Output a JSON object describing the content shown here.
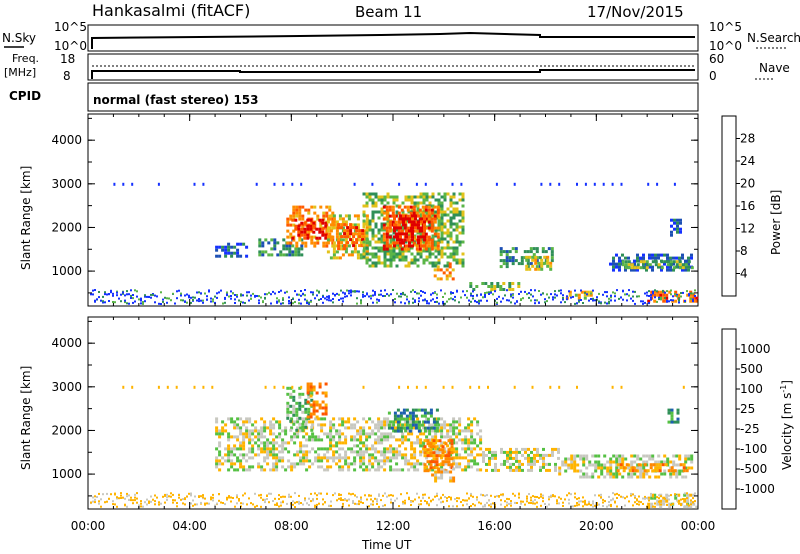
{
  "header": {
    "station": "Hankasalmi (fitACF)",
    "beam": "Beam 11",
    "date": "17/Nov/2015"
  },
  "panels": {
    "nsky": {
      "left_label": "N.Sky",
      "left_top": "10^5",
      "left_bottom": "10^0",
      "right_label": "N.Search",
      "right_top": "10^5",
      "right_bottom": "10^0"
    },
    "freq": {
      "left_label_1": "Freq.",
      "left_label_2": "[MHz]",
      "left_top": "18",
      "left_bottom": "8",
      "right_label": "Nave",
      "right_top": "60",
      "right_bottom": "0"
    },
    "cpid": {
      "label": "CPID",
      "text": "normal (fast stereo) 153"
    }
  },
  "chart_data": [
    {
      "type": "heatmap",
      "title": "",
      "xlabel": "",
      "ylabel": "Slant Range [km]",
      "x_ticks": [
        "00:00",
        "04:00",
        "08:00",
        "12:00",
        "16:00",
        "20:00",
        "00:00"
      ],
      "y_ticks": [
        1000,
        2000,
        3000,
        4000
      ],
      "xlim_hours": [
        0,
        24
      ],
      "ylim_km": [
        200,
        4600
      ],
      "colorbar": {
        "label": "Power [dB]",
        "ticks": [
          4,
          8,
          12,
          16,
          20,
          24,
          28
        ],
        "colors": [
          "#1531ff",
          "#1c4fb4",
          "#2f8f57",
          "#5ab547",
          "#e3c21a",
          "#ff8c00",
          "#ff5a00",
          "#e00000"
        ]
      },
      "patches": [
        {
          "x0": 6.7,
          "x1": 8.4,
          "y0": 1350,
          "y1": 1750,
          "level": 2
        },
        {
          "x0": 7.8,
          "x1": 9.6,
          "y0": 1600,
          "y1": 2500,
          "level": 5
        },
        {
          "x0": 8.0,
          "x1": 9.4,
          "y0": 1750,
          "y1": 2200,
          "level": 7
        },
        {
          "x0": 9.4,
          "x1": 11.0,
          "y0": 1300,
          "y1": 2300,
          "level": 4
        },
        {
          "x0": 9.8,
          "x1": 10.8,
          "y0": 1500,
          "y1": 2100,
          "level": 6
        },
        {
          "x0": 10.8,
          "x1": 14.8,
          "y0": 1100,
          "y1": 2800,
          "level": 3
        },
        {
          "x0": 11.6,
          "x1": 13.8,
          "y0": 1500,
          "y1": 2500,
          "level": 6
        },
        {
          "x0": 12.0,
          "x1": 13.2,
          "y0": 1600,
          "y1": 2300,
          "level": 7
        },
        {
          "x0": 13.6,
          "x1": 14.4,
          "y0": 850,
          "y1": 1200,
          "level": 5
        },
        {
          "x0": 16.2,
          "x1": 18.3,
          "y0": 1100,
          "y1": 1550,
          "level": 2
        },
        {
          "x0": 17.2,
          "x1": 18.2,
          "y0": 1050,
          "y1": 1350,
          "level": 4
        },
        {
          "x0": 20.5,
          "x1": 23.8,
          "y0": 1050,
          "y1": 1400,
          "level": 1
        },
        {
          "x0": 21.0,
          "x1": 23.8,
          "y0": 1100,
          "y1": 1250,
          "level": 3
        },
        {
          "x0": 22.0,
          "x1": 23.9,
          "y0": 300,
          "y1": 550,
          "level": 6
        },
        {
          "x0": 15.0,
          "x1": 17.0,
          "y0": 600,
          "y1": 750,
          "level": 3
        },
        {
          "x0": 18.8,
          "x1": 19.8,
          "y0": 400,
          "y1": 550,
          "level": 4
        },
        {
          "x0": 22.9,
          "x1": 23.3,
          "y0": 1800,
          "y1": 2200,
          "level": 1
        },
        {
          "x0": 5.0,
          "x1": 6.2,
          "y0": 1350,
          "y1": 1650,
          "level": 1
        }
      ]
    },
    {
      "type": "heatmap",
      "title": "",
      "xlabel": "Time UT",
      "ylabel": "Slant Range [km]",
      "x_ticks": [
        "00:00",
        "04:00",
        "08:00",
        "12:00",
        "16:00",
        "20:00",
        "00:00"
      ],
      "y_ticks": [
        1000,
        2000,
        3000,
        4000
      ],
      "xlim_hours": [
        0,
        24
      ],
      "ylim_km": [
        200,
        4600
      ],
      "colorbar": {
        "label": "Velocity [m s-1]",
        "ticks": [
          1000,
          500,
          100,
          25,
          -25,
          -100,
          -500,
          -1000
        ],
        "colors": [
          "#1c3fd0",
          "#1d5fb0",
          "#2f8f57",
          "#55c043",
          "#c8c8c0",
          "#ffb400",
          "#ff8800",
          "#ff5500",
          "#ff0000"
        ]
      },
      "patches": [
        {
          "x0": 5.0,
          "x1": 15.5,
          "y0": 1100,
          "y1": 2300,
          "level": 4
        },
        {
          "x0": 7.8,
          "x1": 8.8,
          "y0": 2000,
          "y1": 3000,
          "level": 3
        },
        {
          "x0": 8.6,
          "x1": 9.4,
          "y0": 2300,
          "y1": 3100,
          "level": 6
        },
        {
          "x0": 11.8,
          "x1": 13.8,
          "y0": 2000,
          "y1": 2500,
          "level": 2
        },
        {
          "x0": 13.2,
          "x1": 14.3,
          "y0": 1100,
          "y1": 1800,
          "level": 6
        },
        {
          "x0": 13.5,
          "x1": 14.4,
          "y0": 850,
          "y1": 1150,
          "level": 5
        },
        {
          "x0": 15.5,
          "x1": 18.5,
          "y0": 1050,
          "y1": 1600,
          "level": 4
        },
        {
          "x0": 18.5,
          "x1": 23.8,
          "y0": 900,
          "y1": 1450,
          "level": 4
        },
        {
          "x0": 20.8,
          "x1": 23.6,
          "y0": 1100,
          "y1": 1250,
          "level": 6
        },
        {
          "x0": 22.0,
          "x1": 23.9,
          "y0": 250,
          "y1": 550,
          "level": 4
        },
        {
          "x0": 22.8,
          "x1": 23.2,
          "y0": 2200,
          "y1": 2500,
          "level": 2
        }
      ]
    }
  ]
}
